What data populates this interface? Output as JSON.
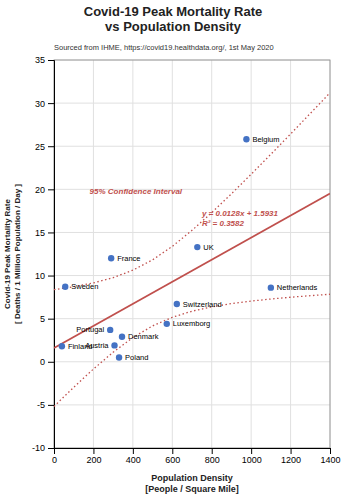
{
  "chart_data": {
    "type": "scatter",
    "title": "Covid-19 Peak Mortality Rate\nvs Population Density",
    "subtitle": "Sourced from IHME, https://covid19.healthdata.org/, 1st May 2020",
    "x_label": "Population Density\n[People / Square Mile]",
    "y_label": "Covid-19 Peak Mortality Rate\n[ Deaths / 1 Million Population / Day ]",
    "xlim": [
      0,
      1400
    ],
    "ylim": [
      -10,
      35
    ],
    "xticks": [
      0,
      200,
      400,
      600,
      800,
      1000,
      1200,
      1400
    ],
    "yticks": [
      -10,
      -5,
      0,
      5,
      10,
      15,
      20,
      25,
      30,
      35
    ],
    "grid": true,
    "annotations": [
      {
        "text": "y = 0.0128x + 1.5931",
        "color": "#C0504D"
      },
      {
        "text": "R² = 0.3582",
        "color": "#C0504D"
      },
      {
        "text": "95% Confidence Interval",
        "color": "#C0504D"
      }
    ],
    "series": [
      {
        "type": "scatter",
        "marker": "circle",
        "color": "#4472C4",
        "x": [
          976,
          727,
          290,
          1100,
          57,
          623,
          572,
          285,
          345,
          307,
          330,
          40
        ],
        "values": [
          25.8,
          13.3,
          12.0,
          8.6,
          8.7,
          6.7,
          4.4,
          3.7,
          2.9,
          1.9,
          0.5,
          1.8
        ],
        "labels": [
          "Belgium",
          "UK",
          "France",
          "Netherlands",
          "Sweden",
          "Switzerland",
          "Luxemborg",
          "Portugal",
          "Denmark",
          "Austria",
          "Poland",
          "Finland"
        ]
      },
      {
        "type": "line",
        "line_style": "solid",
        "color": "#C0504D",
        "x": [
          0,
          1400
        ],
        "values": [
          1.5931,
          19.5131
        ]
      },
      {
        "type": "line",
        "line_style": "dotted",
        "color": "#C0504D",
        "x": [
          0,
          100,
          200,
          300,
          400,
          500,
          600,
          700,
          800,
          900,
          1000,
          1100,
          1200,
          1300,
          1400
        ],
        "values": [
          8.368,
          8.7044,
          9.1465,
          9.7564,
          10.6209,
          11.8243,
          13.3853,
          15.2401,
          17.2967,
          19.4817,
          21.7479,
          24.0668,
          26.4208,
          28.7993,
          31.1957
        ]
      },
      {
        "type": "line",
        "line_style": "dotted",
        "color": "#C0504D",
        "x": [
          0,
          100,
          200,
          300,
          400,
          500,
          600,
          700,
          800,
          900,
          1000,
          1100,
          1200,
          1300,
          1400
        ],
        "values": [
          -5.1818,
          -2.9582,
          -0.8403,
          1.1098,
          2.8053,
          4.1619,
          5.1609,
          5.8661,
          6.3695,
          6.7445,
          7.0383,
          7.2794,
          7.4854,
          7.6669,
          7.8305
        ]
      }
    ]
  }
}
